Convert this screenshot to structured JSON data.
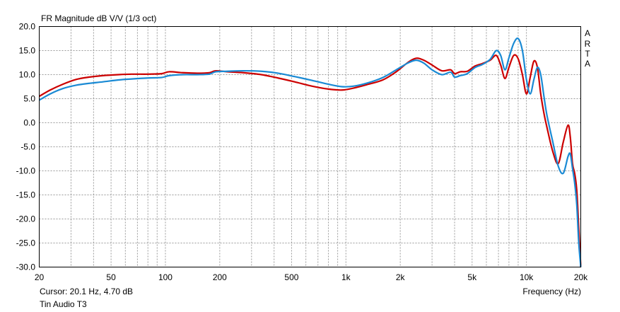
{
  "header": {
    "title": "FR Magnitude dB V/V (1/3 oct)"
  },
  "brand": {
    "letters": [
      "A",
      "R",
      "T",
      "A"
    ]
  },
  "footer": {
    "cursor": "Cursor: 20.1 Hz, 4.70 dB",
    "device": "Tin Audio T3",
    "x_label": "Frequency (Hz)"
  },
  "chart_data": {
    "type": "line",
    "title": "FR Magnitude dB V/V (1/3 oct)",
    "xlabel": "Frequency (Hz)",
    "ylabel": "",
    "x_scale": "log",
    "xlim": [
      20,
      20000
    ],
    "ylim": [
      -30,
      20
    ],
    "grid": true,
    "y_ticks": [
      20,
      15,
      10,
      5,
      0,
      -5,
      -10,
      -15,
      -20,
      -25,
      -30
    ],
    "y_tick_labels": [
      "20.0",
      "15.0",
      "10.0",
      "5.0",
      "0.0",
      "-5.0",
      "-10.0",
      "-15.0",
      "-20.0",
      "-25.0",
      "-30.0"
    ],
    "x_ticks": [
      20,
      50,
      100,
      200,
      500,
      1000,
      2000,
      5000,
      10000,
      20000
    ],
    "x_tick_labels": [
      "20",
      "50",
      "100",
      "200",
      "500",
      "1k",
      "2k",
      "5k",
      "10k",
      "20k"
    ],
    "colors": {
      "red": "#cc0000",
      "blue": "#1a8ad4",
      "grid": "#9a9a9a",
      "frame": "#000000"
    },
    "series": [
      {
        "color": "#cc0000",
        "x": [
          20,
          23,
          27,
          32,
          38,
          45,
          55,
          65,
          80,
          95,
          105,
          125,
          150,
          175,
          190,
          220,
          270,
          340,
          420,
          520,
          650,
          800,
          950,
          1100,
          1300,
          1600,
          1900,
          2200,
          2450,
          2700,
          3000,
          3400,
          3800,
          4000,
          4300,
          4700,
          5200,
          5700,
          6300,
          6800,
          7200,
          7600,
          8000,
          8500,
          9000,
          9500,
          10000,
          10500,
          11000,
          11500,
          12000,
          12500,
          13000,
          14000,
          15000,
          16000,
          17000,
          17500,
          18000,
          18500,
          19000,
          19500,
          20000
        ],
        "y": [
          5.5,
          6.8,
          8.0,
          9.0,
          9.5,
          9.8,
          10.0,
          10.1,
          10.1,
          10.2,
          10.6,
          10.4,
          10.3,
          10.4,
          10.8,
          10.6,
          10.4,
          10.0,
          9.3,
          8.5,
          7.6,
          7.0,
          6.8,
          7.2,
          7.9,
          8.9,
          10.6,
          12.5,
          13.4,
          13.0,
          12.0,
          10.8,
          11.0,
          10.2,
          10.6,
          10.7,
          11.8,
          12.3,
          13.0,
          14.0,
          12.0,
          9.2,
          11.5,
          14.0,
          13.3,
          10.0,
          6.0,
          9.5,
          12.8,
          11.5,
          6.0,
          2.0,
          -1.0,
          -6.0,
          -8.5,
          -4.0,
          -0.5,
          -3.0,
          -8.5,
          -10.5,
          -14.0,
          -22.0,
          -30.0
        ]
      },
      {
        "color": "#1a8ad4",
        "x": [
          20,
          23,
          27,
          32,
          38,
          45,
          55,
          65,
          80,
          95,
          105,
          125,
          150,
          175,
          190,
          220,
          270,
          340,
          420,
          520,
          650,
          800,
          950,
          1100,
          1300,
          1600,
          1900,
          2200,
          2450,
          2700,
          3000,
          3400,
          3800,
          4000,
          4300,
          4700,
          5200,
          5700,
          6300,
          6800,
          7200,
          7600,
          8000,
          8500,
          9000,
          9500,
          10000,
          10500,
          11000,
          11500,
          12000,
          12500,
          13000,
          14000,
          15000,
          16000,
          17000,
          17500,
          18000,
          18500,
          19000,
          19500,
          20000
        ],
        "y": [
          4.7,
          6.0,
          7.1,
          7.8,
          8.2,
          8.5,
          8.9,
          9.1,
          9.3,
          9.4,
          9.8,
          10.0,
          10.0,
          10.1,
          10.6,
          10.7,
          10.8,
          10.7,
          10.3,
          9.6,
          8.8,
          8.0,
          7.5,
          7.6,
          8.2,
          9.4,
          11.0,
          12.4,
          13.0,
          12.4,
          11.0,
          10.0,
          10.5,
          9.5,
          9.8,
          10.2,
          11.5,
          12.1,
          13.2,
          15.0,
          14.0,
          11.0,
          13.5,
          16.5,
          17.5,
          15.0,
          9.0,
          6.0,
          9.0,
          11.5,
          10.0,
          5.5,
          1.5,
          -4.0,
          -9.0,
          -10.5,
          -7.0,
          -6.5,
          -9.5,
          -12.5,
          -17.0,
          -25.0,
          -30.0
        ]
      }
    ]
  }
}
